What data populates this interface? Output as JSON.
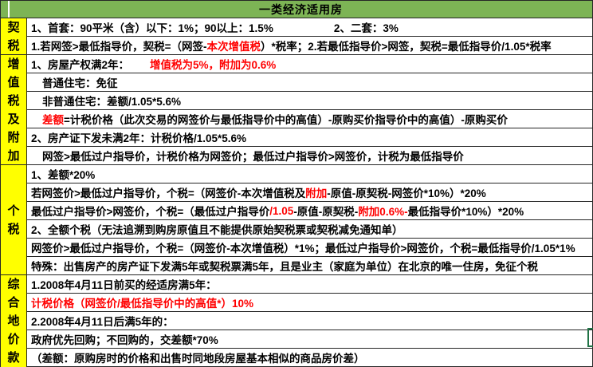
{
  "header": {
    "title": "一类经济适用房"
  },
  "colors": {
    "header_green": "#7db455",
    "label_yellow": "#ffff00",
    "grid": "#262626",
    "highlight_red": "#ff0000",
    "selection_green": "#217346"
  },
  "label_groups": [
    {
      "label": "契税",
      "span": 2
    },
    {
      "label": "增值税及附加",
      "span": 6
    },
    {
      "label": "个税",
      "span": 6
    },
    {
      "label": "综合地价款",
      "span": 5
    }
  ],
  "rows": [
    {
      "indent": false,
      "segments": [
        {
          "t": "1、首套：90平米（含）以下：1%；90以上：1.5%"
        },
        {
          "t": "2、二套：3%",
          "gap": 76
        }
      ]
    },
    {
      "indent": false,
      "segments": [
        {
          "t": "1.若网签>最低指导价，契税=（网签-"
        },
        {
          "t": "本次增值税",
          "red": true
        },
        {
          "t": "）*税率；2.若最低指导价>网签，契税=最低指导价/1.05*税率"
        }
      ]
    },
    {
      "indent": false,
      "segments": [
        {
          "t": "1、房屋产权满2年："
        },
        {
          "t": "增值税为5%，附加为0.6%",
          "red": true,
          "gap": 26
        }
      ]
    },
    {
      "indent": true,
      "segments": [
        {
          "t": "普通住宅：免征"
        }
      ]
    },
    {
      "indent": true,
      "segments": [
        {
          "t": "非普通住宅：差额/1.05*5.6%"
        }
      ]
    },
    {
      "indent": true,
      "segments": [
        {
          "t": "差额",
          "red": true
        },
        {
          "t": "=计税价格（此次交易的网签价与最低指导价中的高值）-原购买价指导价中的高值）-原购买价"
        }
      ]
    },
    {
      "indent": false,
      "segments": [
        {
          "t": "2、房产证下发未满2年：计税价格/1.05*5.6%"
        }
      ]
    },
    {
      "indent": true,
      "segments": [
        {
          "t": "网签>最低过户指导价，计税价格为网签价；最低过户指导价>网签价，计税为最低指导价"
        }
      ]
    },
    {
      "indent": false,
      "segments": [
        {
          "t": "1、差额*20%"
        }
      ]
    },
    {
      "indent": false,
      "segments": [
        {
          "t": "若网签价>最低过户指导价，个税=（网签价-本次增值税及"
        },
        {
          "t": "附加",
          "red": true
        },
        {
          "t": "-原值-原契税-网签价*10%）*20%"
        }
      ]
    },
    {
      "indent": false,
      "segments": [
        {
          "t": "最低过户指导价>网签价，个税=（最低过户指导价"
        },
        {
          "t": "/1.05",
          "red": true
        },
        {
          "t": "-原值-原契税-"
        },
        {
          "t": "附加0.6%-",
          "red": true
        },
        {
          "t": "最低指导价*10%）*20%"
        }
      ]
    },
    {
      "indent": false,
      "segments": [
        {
          "t": "2、全额个税（无法追溯到购房原值且不能提供原始契税票或契税减免通知单）"
        }
      ]
    },
    {
      "indent": false,
      "segments": [
        {
          "t": "网签价>最低过户指导价，个税=（网签价-本次增值税）*1%；最低过户指导价>网签价，个税=最低指导价/1.05*1%"
        }
      ]
    },
    {
      "indent": false,
      "segments": [
        {
          "t": "特殊：出售房产的房产证下发满5年或契税票满5年，且是业主（家庭为单位）在北京的唯一住房，免征个税"
        }
      ]
    },
    {
      "indent": false,
      "segments": [
        {
          "t": "1.2008年4月11日前买的经适房满5年："
        }
      ]
    },
    {
      "indent": false,
      "segments": [
        {
          "t": "计税价格（网签价/最低指导价中的高值*）10%",
          "red": true
        }
      ]
    },
    {
      "indent": false,
      "segments": [
        {
          "t": "2.2008年4月11日后满5年的："
        }
      ]
    },
    {
      "indent": false,
      "segments": [
        {
          "t": "政府优先回购；不回购的，交差额*70%"
        }
      ]
    },
    {
      "indent": false,
      "segments": [
        {
          "t": "（差额：原购房时的价格和出售时同地段房屋基本相似的商品房价差）"
        }
      ]
    }
  ]
}
